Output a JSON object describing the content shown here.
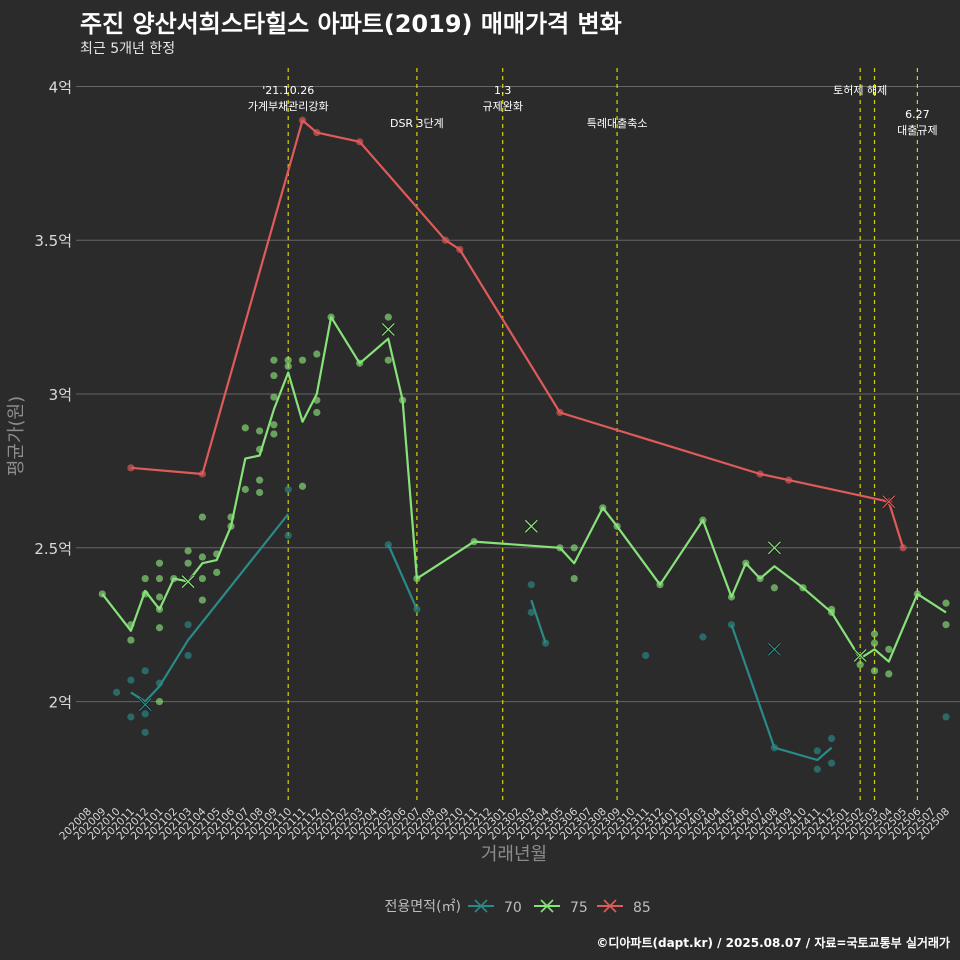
{
  "header": {
    "title": "주진 양산서희스타힐스 아파트(2019) 매매가격 변화",
    "subtitle": "최근 5개년 한정"
  },
  "caption": "©디아파트(dapt.kr) / 2025.08.07 / 자료=국토교통부 실거래가",
  "colors": {
    "background": "#2b2b2b",
    "grid": "#666666",
    "vline": "#d4d40f",
    "s70": "#2a8a88",
    "s75": "#88e27a",
    "s85": "#e05a5a"
  },
  "chart_data": {
    "type": "line",
    "xlabel": "거래년월",
    "ylabel": "평균가(원)",
    "x_categories": [
      "202008",
      "202009",
      "202010",
      "202011",
      "202012",
      "202101",
      "202102",
      "202103",
      "202104",
      "202105",
      "202106",
      "202107",
      "202108",
      "202109",
      "202110",
      "202111",
      "202112",
      "202201",
      "202202",
      "202203",
      "202204",
      "202205",
      "202206",
      "202207",
      "202208",
      "202209",
      "202210",
      "202211",
      "202212",
      "202301",
      "202302",
      "202303",
      "202304",
      "202305",
      "202306",
      "202307",
      "202308",
      "202309",
      "202310",
      "202311",
      "202312",
      "202401",
      "202402",
      "202403",
      "202404",
      "202405",
      "202406",
      "202407",
      "202408",
      "202409",
      "202410",
      "202411",
      "202412",
      "202501",
      "202502",
      "202503",
      "202504",
      "202505",
      "202506",
      "202507",
      "202508"
    ],
    "y_ticks": [
      {
        "value": 2.0,
        "label": "2억"
      },
      {
        "value": 2.5,
        "label": "2.5억"
      },
      {
        "value": 3.0,
        "label": "3억"
      },
      {
        "value": 3.5,
        "label": "3.5억"
      },
      {
        "value": 4.0,
        "label": "4억"
      }
    ],
    "ylim": [
      1.68,
      4.06
    ],
    "grid": true,
    "legend": {
      "title": "전용면적(㎡)",
      "position": "bottom",
      "entries": [
        {
          "label": "70",
          "color": "#2a8a88"
        },
        {
          "label": "75",
          "color": "#88e27a"
        },
        {
          "label": "85",
          "color": "#e05a5a"
        }
      ]
    },
    "events": [
      {
        "x": "202110",
        "label_lines": [
          "'21.10.26",
          "가계부채관리강화"
        ],
        "level": 0
      },
      {
        "x": "202207",
        "label_lines": [
          "DSR 3단계"
        ],
        "level": 1
      },
      {
        "x": "202301",
        "label_lines": [
          "1.3",
          "규제완화"
        ],
        "level": 0
      },
      {
        "x": "202309",
        "label_lines": [
          "특례대출축소"
        ],
        "level": 1
      },
      {
        "x": "202502",
        "label_lines": [
          "토허제 해제"
        ],
        "level": 0
      },
      {
        "x": "202503",
        "label_lines": [],
        "level": 0
      },
      {
        "x": "202506",
        "label_lines": [
          "6.27",
          "대출규제"
        ],
        "level": 1
      }
    ],
    "series": [
      {
        "name": "70",
        "color": "#2a8a88",
        "segments": [
          [
            [
              "202011",
              2.03
            ],
            [
              "202012",
              2.0
            ],
            [
              "202101",
              2.05
            ],
            [
              "202103",
              2.2
            ],
            [
              "202110",
              2.61
            ]
          ],
          [
            [
              "202205",
              2.51
            ],
            [
              "202207",
              2.3
            ]
          ],
          [
            [
              "202303",
              2.33
            ],
            [
              "202304",
              2.19
            ]
          ],
          [
            [
              "202405",
              2.25
            ],
            [
              "202408",
              1.85
            ],
            [
              "202411",
              1.81
            ],
            [
              "202412",
              1.85
            ]
          ]
        ],
        "points": [
          [
            "202010",
            2.03
          ],
          [
            "202011",
            2.07
          ],
          [
            "202011",
            1.95
          ],
          [
            "202012",
            2.1
          ],
          [
            "202012",
            1.96
          ],
          [
            "202012",
            1.9
          ],
          [
            "202101",
            2.06
          ],
          [
            "202103",
            2.25
          ],
          [
            "202103",
            2.15
          ],
          [
            "202110",
            2.69
          ],
          [
            "202110",
            2.54
          ],
          [
            "202205",
            2.51
          ],
          [
            "202207",
            2.3
          ],
          [
            "202303",
            2.38
          ],
          [
            "202303",
            2.29
          ],
          [
            "202304",
            2.19
          ],
          [
            "202311",
            2.15
          ],
          [
            "202403",
            2.21
          ],
          [
            "202405",
            2.25
          ],
          [
            "202408",
            1.85
          ],
          [
            "202411",
            1.84
          ],
          [
            "202411",
            1.78
          ],
          [
            "202412",
            1.88
          ],
          [
            "202412",
            1.8
          ],
          [
            "202508",
            1.95
          ]
        ],
        "crosses": [
          [
            "202012",
            1.99
          ],
          [
            "202408",
            2.17
          ]
        ]
      },
      {
        "name": "75",
        "color": "#88e27a",
        "segments": [
          [
            [
              "202009",
              2.35
            ],
            [
              "202011",
              2.23
            ],
            [
              "202012",
              2.36
            ],
            [
              "202101",
              2.3
            ],
            [
              "202102",
              2.4
            ],
            [
              "202103",
              2.39
            ],
            [
              "202104",
              2.45
            ],
            [
              "202105",
              2.46
            ],
            [
              "202106",
              2.57
            ],
            [
              "202107",
              2.79
            ],
            [
              "202108",
              2.8
            ],
            [
              "202109",
              2.95
            ],
            [
              "202110",
              3.07
            ],
            [
              "202111",
              2.91
            ],
            [
              "202112",
              3.0
            ],
            [
              "202201",
              3.25
            ],
            [
              "202203",
              3.1
            ],
            [
              "202205",
              3.18
            ],
            [
              "202206",
              2.98
            ],
            [
              "202207",
              2.4
            ],
            [
              "202211",
              2.52
            ],
            [
              "202305",
              2.5
            ],
            [
              "202306",
              2.45
            ],
            [
              "202308",
              2.63
            ],
            [
              "202309",
              2.57
            ],
            [
              "202312",
              2.38
            ],
            [
              "202403",
              2.59
            ],
            [
              "202405",
              2.34
            ],
            [
              "202406",
              2.45
            ],
            [
              "202407",
              2.4
            ],
            [
              "202408",
              2.44
            ],
            [
              "202410",
              2.37
            ],
            [
              "202412",
              2.29
            ],
            [
              "202502",
              2.14
            ],
            [
              "202503",
              2.17
            ],
            [
              "202504",
              2.13
            ],
            [
              "202506",
              2.35
            ],
            [
              "202508",
              2.29
            ]
          ]
        ],
        "points": [
          [
            "202009",
            2.35
          ],
          [
            "202011",
            2.25
          ],
          [
            "202011",
            2.2
          ],
          [
            "202012",
            2.4
          ],
          [
            "202012",
            2.35
          ],
          [
            "202101",
            2.45
          ],
          [
            "202101",
            2.4
          ],
          [
            "202101",
            2.34
          ],
          [
            "202101",
            2.3
          ],
          [
            "202101",
            2.24
          ],
          [
            "202101",
            2.0
          ],
          [
            "202102",
            2.4
          ],
          [
            "202103",
            2.49
          ],
          [
            "202103",
            2.45
          ],
          [
            "202104",
            2.6
          ],
          [
            "202104",
            2.47
          ],
          [
            "202104",
            2.4
          ],
          [
            "202104",
            2.33
          ],
          [
            "202105",
            2.48
          ],
          [
            "202105",
            2.42
          ],
          [
            "202106",
            2.6
          ],
          [
            "202106",
            2.57
          ],
          [
            "202107",
            2.89
          ],
          [
            "202107",
            2.69
          ],
          [
            "202108",
            2.88
          ],
          [
            "202108",
            2.82
          ],
          [
            "202108",
            2.72
          ],
          [
            "202108",
            2.68
          ],
          [
            "202109",
            3.11
          ],
          [
            "202109",
            3.06
          ],
          [
            "202109",
            2.99
          ],
          [
            "202109",
            2.9
          ],
          [
            "202109",
            2.87
          ],
          [
            "202110",
            3.11
          ],
          [
            "202110",
            3.09
          ],
          [
            "202111",
            3.11
          ],
          [
            "202111",
            2.7
          ],
          [
            "202112",
            3.13
          ],
          [
            "202112",
            2.98
          ],
          [
            "202112",
            2.94
          ],
          [
            "202201",
            3.25
          ],
          [
            "202203",
            3.1
          ],
          [
            "202205",
            3.25
          ],
          [
            "202205",
            3.11
          ],
          [
            "202206",
            2.98
          ],
          [
            "202207",
            2.4
          ],
          [
            "202211",
            2.52
          ],
          [
            "202305",
            2.5
          ],
          [
            "202306",
            2.5
          ],
          [
            "202306",
            2.4
          ],
          [
            "202308",
            2.63
          ],
          [
            "202309",
            2.57
          ],
          [
            "202312",
            2.38
          ],
          [
            "202403",
            2.59
          ],
          [
            "202405",
            2.34
          ],
          [
            "202406",
            2.45
          ],
          [
            "202407",
            2.4
          ],
          [
            "202408",
            2.37
          ],
          [
            "202410",
            2.37
          ],
          [
            "202412",
            2.3
          ],
          [
            "202412",
            2.29
          ],
          [
            "202502",
            2.12
          ],
          [
            "202503",
            2.22
          ],
          [
            "202503",
            2.19
          ],
          [
            "202503",
            2.1
          ],
          [
            "202504",
            2.17
          ],
          [
            "202504",
            2.09
          ],
          [
            "202506",
            2.35
          ],
          [
            "202508",
            2.32
          ],
          [
            "202508",
            2.25
          ]
        ],
        "crosses": [
          [
            "202103",
            2.39
          ],
          [
            "202205",
            3.21
          ],
          [
            "202303",
            2.57
          ],
          [
            "202408",
            2.5
          ],
          [
            "202502",
            2.15
          ]
        ]
      },
      {
        "name": "85",
        "color": "#e05a5a",
        "segments": [
          [
            [
              "202011",
              2.76
            ],
            [
              "202104",
              2.74
            ],
            [
              "202111",
              3.89
            ],
            [
              "202112",
              3.85
            ],
            [
              "202203",
              3.82
            ],
            [
              "202209",
              3.5
            ],
            [
              "202210",
              3.47
            ],
            [
              "202305",
              2.94
            ],
            [
              "202407",
              2.74
            ],
            [
              "202409",
              2.72
            ],
            [
              "202504",
              2.65
            ],
            [
              "202505",
              2.5
            ]
          ]
        ],
        "points": [
          [
            "202011",
            2.76
          ],
          [
            "202104",
            2.74
          ],
          [
            "202111",
            3.89
          ],
          [
            "202112",
            3.85
          ],
          [
            "202203",
            3.82
          ],
          [
            "202209",
            3.5
          ],
          [
            "202210",
            3.47
          ],
          [
            "202305",
            2.94
          ],
          [
            "202407",
            2.74
          ],
          [
            "202409",
            2.72
          ],
          [
            "202504",
            2.65
          ],
          [
            "202505",
            2.5
          ]
        ],
        "crosses": [
          [
            "202504",
            2.65
          ]
        ]
      }
    ]
  }
}
